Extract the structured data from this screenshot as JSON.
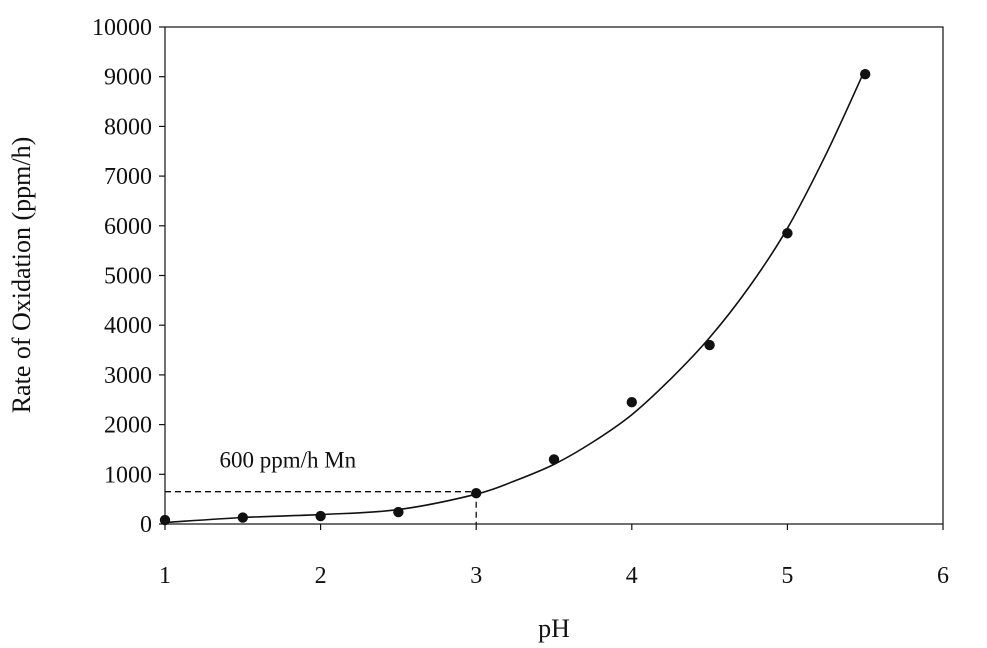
{
  "chart_data": {
    "type": "scatter",
    "xlabel": "pH",
    "ylabel": "Rate of Oxidation (ppm/h)",
    "xlim": [
      1,
      6
    ],
    "ylim": [
      0,
      10000
    ],
    "x_ticks": [
      1,
      2,
      3,
      4,
      5,
      6
    ],
    "y_ticks": [
      0,
      1000,
      2000,
      3000,
      4000,
      5000,
      6000,
      7000,
      8000,
      9000,
      10000
    ],
    "grid": false,
    "legend": "none",
    "series": [
      {
        "style": "markers",
        "x": [
          1.0,
          1.5,
          2.0,
          2.5,
          3.0,
          3.5,
          4.0,
          4.5,
          5.0,
          5.5
        ],
        "y": [
          80,
          130,
          160,
          240,
          620,
          1300,
          2450,
          3600,
          5850,
          9050
        ]
      },
      {
        "style": "fitted curve",
        "x": [
          1.0,
          1.5,
          2.0,
          2.5,
          3.0,
          3.25,
          3.5,
          3.75,
          4.0,
          4.25,
          4.5,
          4.75,
          5.0,
          5.25,
          5.5
        ],
        "y": [
          30,
          130,
          190,
          290,
          600,
          870,
          1200,
          1650,
          2200,
          2920,
          3750,
          4750,
          5950,
          7450,
          9150
        ]
      }
    ],
    "annotations": [
      {
        "text": "600 ppm/h Mn",
        "x": 1.35,
        "y": 1300,
        "guide_point": {
          "x": 3.0,
          "y": 650
        }
      }
    ]
  },
  "colors": {
    "axis": "#111111",
    "marker": "#111111",
    "curve": "#111111"
  }
}
